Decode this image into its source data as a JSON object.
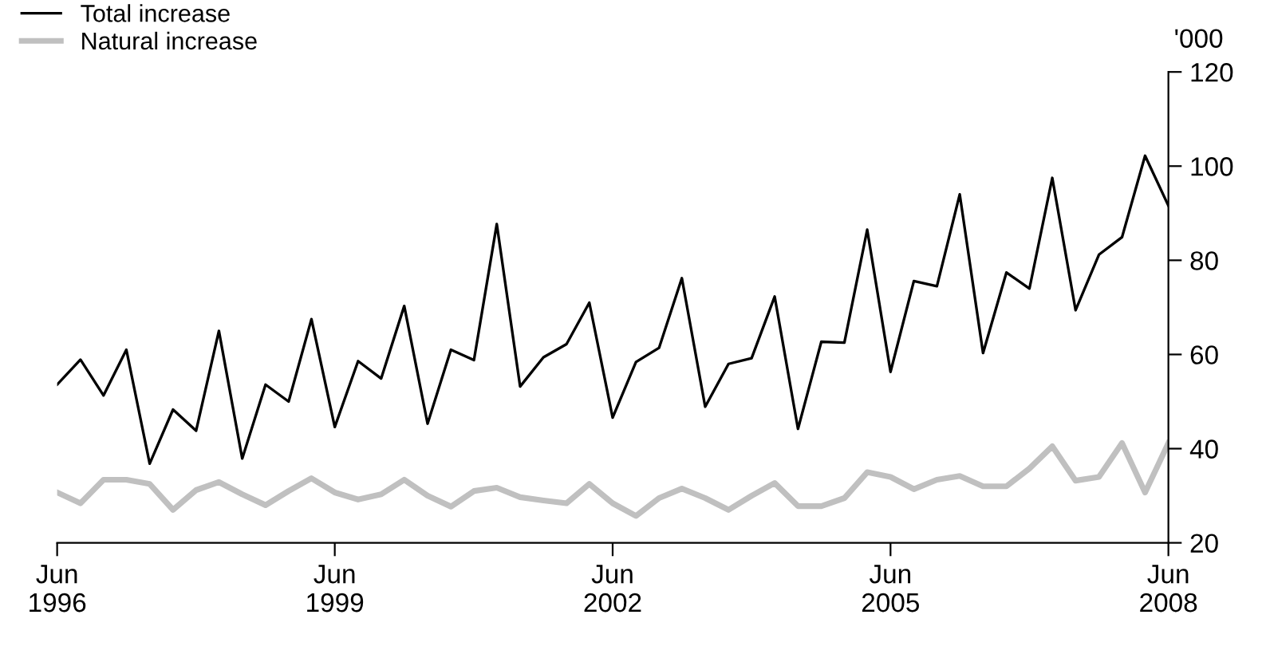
{
  "chart_data": {
    "type": "line",
    "ylabel": "'000",
    "x": [
      "1996-06",
      "1996-09",
      "1996-12",
      "1997-03",
      "1997-06",
      "1997-09",
      "1997-12",
      "1998-03",
      "1998-06",
      "1998-09",
      "1998-12",
      "1999-03",
      "1999-06",
      "1999-09",
      "1999-12",
      "2000-03",
      "2000-06",
      "2000-09",
      "2000-12",
      "2001-03",
      "2001-06",
      "2001-09",
      "2001-12",
      "2002-03",
      "2002-06",
      "2002-09",
      "2002-12",
      "2003-03",
      "2003-06",
      "2003-09",
      "2003-12",
      "2004-03",
      "2004-06",
      "2004-09",
      "2004-12",
      "2005-03",
      "2005-06",
      "2005-09",
      "2005-12",
      "2006-03",
      "2006-06",
      "2006-09",
      "2006-12",
      "2007-03",
      "2007-06",
      "2007-09",
      "2007-12",
      "2008-03",
      "2008-06"
    ],
    "series": [
      {
        "name": "Total increase",
        "color": "#000000",
        "values": [
          53.6,
          58.9,
          51.3,
          61,
          36.8,
          48.3,
          43.8,
          65,
          37.9,
          53.6,
          50,
          67.5,
          44.6,
          58.6,
          54.9,
          70.3,
          45.3,
          61,
          58.8,
          87.7,
          53.2,
          59.4,
          62.2,
          71,
          46.6,
          58.4,
          61.4,
          76.2,
          48.9,
          58,
          59.2,
          72.3,
          44.2,
          62.7,
          62.5,
          86.5,
          56.3,
          75.6,
          74.5,
          94,
          60.3,
          77.4,
          74,
          97.5,
          69.4,
          81.2,
          84.9,
          102.2,
          91.6
        ]
      },
      {
        "name": "Natural increase",
        "color": "#c0c0c0",
        "values": [
          30.7,
          28.4,
          33.4,
          33.4,
          32.5,
          27,
          31.2,
          32.9,
          30.3,
          28,
          31,
          33.7,
          30.7,
          29.2,
          30.3,
          33.4,
          30,
          27.7,
          31,
          31.7,
          29.7,
          29,
          28.4,
          32.5,
          28.4,
          25.7,
          29.5,
          31.5,
          29.5,
          27,
          30,
          32.7,
          27.8,
          27.8,
          29.5,
          35,
          34,
          31.4,
          33.4,
          34.2,
          32,
          32,
          35.8,
          40.5,
          33.2,
          34,
          41.2,
          30.7,
          41.2
        ]
      }
    ],
    "xlim": [
      "1996-06",
      "2008-06"
    ],
    "xticks": [
      {
        "value": "1996-06",
        "label": "Jun\n1996"
      },
      {
        "value": "1999-06",
        "label": "Jun\n1999"
      },
      {
        "value": "2002-06",
        "label": "Jun\n2002"
      },
      {
        "value": "2005-06",
        "label": "Jun\n2005"
      },
      {
        "value": "2008-06",
        "label": "Jun\n2008"
      }
    ],
    "ylim": [
      20,
      120
    ],
    "yticks": [
      20,
      40,
      60,
      80,
      100,
      120
    ],
    "grid": false,
    "legend": "top left",
    "marker": "none",
    "line_style": "solid"
  }
}
